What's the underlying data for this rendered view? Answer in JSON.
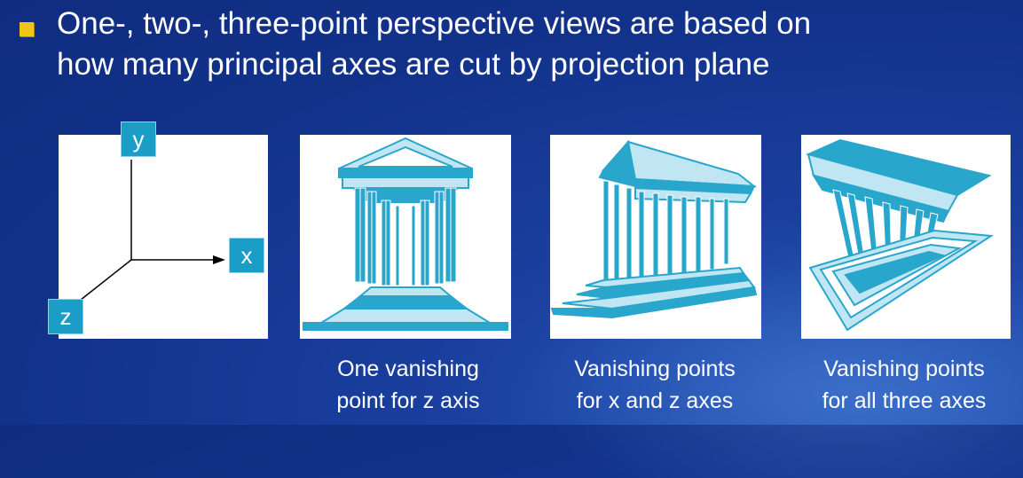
{
  "bullet": {
    "text": "One-, two-, three-point perspective views are based on\nhow many principal axes are cut by projection plane"
  },
  "axes_diagram": {
    "y_label": "y",
    "x_label": "x",
    "z_label": "z"
  },
  "captions": {
    "one_point": "One vanishing\npoint for z axis",
    "two_point": "Vanishing points\nfor x and z axes",
    "three_point": "Vanishing points\nfor all three axes"
  },
  "colors": {
    "background": "#12328a",
    "bullet": "#f0c419",
    "temple": "#29a6cc",
    "temple_light": "#bfe6f2",
    "label_box": "#1a9ec8"
  }
}
